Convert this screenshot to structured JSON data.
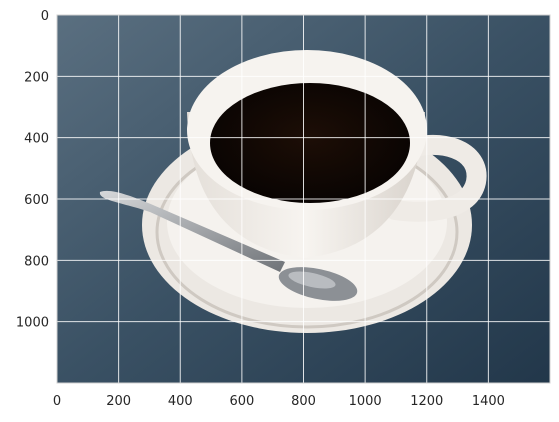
{
  "figure": {
    "type": "image-plot",
    "subject": "cup of black coffee on saucer with spoon",
    "colors": {
      "background_dark": "#2a3f52",
      "background_light": "#5a6f80",
      "ceramic": "#f3f0ec",
      "ceramic_shadow": "#cfc9c2",
      "coffee": "#120904",
      "spoon": "#a9adb1",
      "grid": "#ffffff",
      "axes_edge": "#d0d0d0"
    }
  },
  "chart_data": {
    "type": "image",
    "grid": true,
    "xlim": [
      0,
      1600
    ],
    "ylim": [
      1200,
      0
    ],
    "x_ticks": [
      0,
      200,
      400,
      600,
      800,
      1000,
      1200,
      1400
    ],
    "y_ticks": [
      0,
      200,
      400,
      600,
      800,
      1000
    ],
    "x_tick_labels": [
      "0",
      "200",
      "400",
      "600",
      "800",
      "1000",
      "1200",
      "1400"
    ],
    "y_tick_labels": [
      "0",
      "200",
      "400",
      "600",
      "800",
      "1000"
    ]
  }
}
